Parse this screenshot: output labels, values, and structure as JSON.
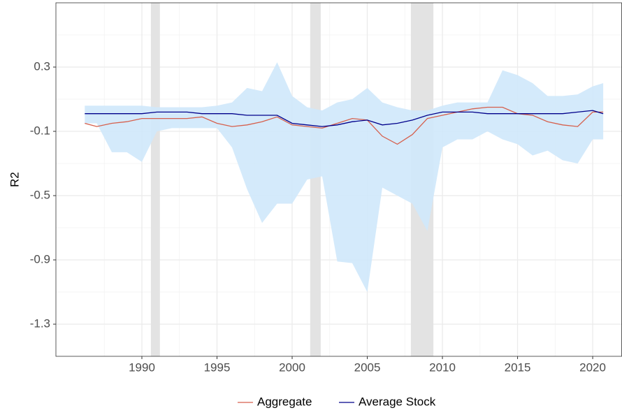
{
  "chart_data": {
    "type": "line",
    "y_label": "R2",
    "x": [
      1986.2,
      1987,
      1988,
      1989,
      1990,
      1991,
      1992,
      1993,
      1994,
      1995,
      1996,
      1997,
      1998,
      1999,
      2000,
      2001,
      2002,
      2003,
      2004,
      2005,
      2006,
      2007,
      2008,
      2009,
      2010,
      2011,
      2012,
      2013,
      2014,
      2015,
      2016,
      2017,
      2018,
      2019,
      2020,
      2020.7
    ],
    "series": [
      {
        "name": "Aggregate",
        "color": "#d6604d",
        "values": [
          -0.05,
          -0.07,
          -0.05,
          -0.04,
          -0.02,
          -0.02,
          -0.02,
          -0.02,
          -0.01,
          -0.05,
          -0.07,
          -0.06,
          -0.04,
          -0.01,
          -0.06,
          -0.07,
          -0.08,
          -0.05,
          -0.02,
          -0.03,
          -0.13,
          -0.18,
          -0.12,
          -0.02,
          0.0,
          0.02,
          0.04,
          0.05,
          0.05,
          0.01,
          0.0,
          -0.04,
          -0.06,
          -0.07,
          0.02,
          0.02
        ]
      },
      {
        "name": "Average Stock",
        "color": "#00008b",
        "values": [
          0.01,
          0.01,
          0.01,
          0.01,
          0.01,
          0.02,
          0.02,
          0.02,
          0.01,
          0.01,
          0.01,
          0.0,
          0.0,
          0.0,
          -0.05,
          -0.06,
          -0.07,
          -0.06,
          -0.04,
          -0.03,
          -0.06,
          -0.05,
          -0.03,
          0.0,
          0.02,
          0.02,
          0.02,
          0.01,
          0.01,
          0.01,
          0.01,
          0.01,
          0.01,
          0.02,
          0.03,
          0.01
        ]
      }
    ],
    "band": {
      "color": "#cfe8fb",
      "upper": [
        0.06,
        0.06,
        0.06,
        0.06,
        0.06,
        0.05,
        0.05,
        0.05,
        0.05,
        0.06,
        0.08,
        0.17,
        0.15,
        0.33,
        0.12,
        0.05,
        0.03,
        0.08,
        0.1,
        0.17,
        0.08,
        0.05,
        0.03,
        0.03,
        0.06,
        0.08,
        0.08,
        0.08,
        0.28,
        0.25,
        0.2,
        0.12,
        0.12,
        0.13,
        0.18,
        0.2
      ],
      "lower": [
        -0.05,
        -0.05,
        -0.23,
        -0.23,
        -0.29,
        -0.1,
        -0.08,
        -0.08,
        -0.08,
        -0.08,
        -0.2,
        -0.46,
        -0.67,
        -0.55,
        -0.55,
        -0.4,
        -0.38,
        -0.91,
        -0.92,
        -1.1,
        -0.45,
        -0.5,
        -0.55,
        -0.72,
        -0.2,
        -0.15,
        -0.15,
        -0.1,
        -0.15,
        -0.18,
        -0.25,
        -0.22,
        -0.28,
        -0.3,
        -0.15,
        -0.15
      ]
    },
    "shaded_regions": [
      [
        1990.6,
        1991.2
      ],
      [
        2001.2,
        2001.9
      ],
      [
        2007.9,
        2009.4
      ]
    ],
    "shade_color": "#e3e3e3",
    "xlim": [
      1984.28,
      2021.95
    ],
    "ylim": [
      -1.5,
      0.7
    ],
    "xticks": [
      1990,
      1995,
      2000,
      2005,
      2010,
      2015,
      2020
    ],
    "yticks": [
      0.3,
      -0.1,
      -0.5,
      -0.9,
      -1.3
    ],
    "x_minor_ticks": [
      1987.5,
      1992.5,
      1997.5,
      2002.5,
      2007.5,
      2012.5,
      2017.5
    ],
    "y_minor_ticks": [
      0.5,
      0.1,
      -0.3,
      -0.7,
      -1.1
    ],
    "grid": true,
    "legend": "bottom"
  }
}
